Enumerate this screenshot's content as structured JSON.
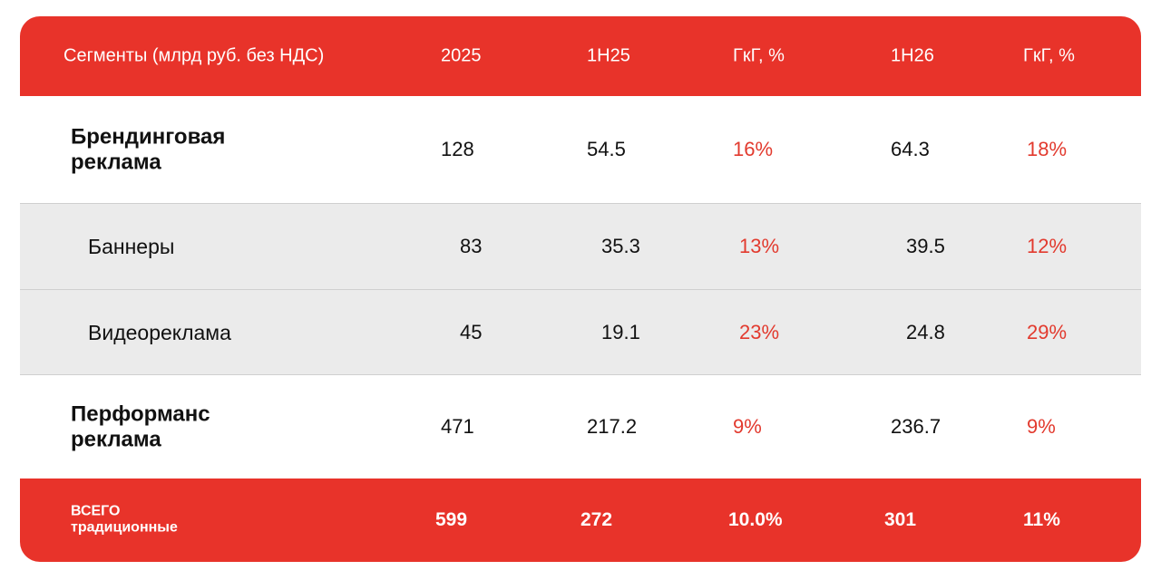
{
  "table": {
    "header": [
      "Сегменты (млрд руб. без НДС)",
      "2025",
      "1H25",
      "ГкГ, %",
      "1H26",
      "ГкГ, %"
    ],
    "rows": [
      [
        "Брендинговая реклама",
        "128",
        "54.5",
        "16%",
        "64.3",
        "18%"
      ],
      [
        "Баннеры",
        "83",
        "35.3",
        "13%",
        "39.5",
        "12%"
      ],
      [
        "Видеореклама",
        "45",
        "19.1",
        "23%",
        "24.8",
        "29%"
      ],
      [
        "Перформанс реклама",
        "471",
        "217.2",
        "9%",
        "236.7",
        "9%"
      ]
    ],
    "total": [
      "ВСЕГО традиционные",
      "599",
      "272",
      "10.0%",
      "301",
      "11%"
    ]
  }
}
